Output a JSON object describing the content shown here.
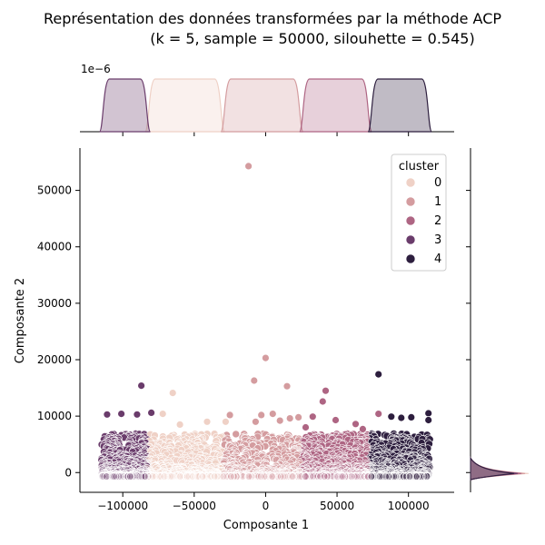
{
  "chart_data": {
    "type": "scatter",
    "title_line1": "Représentation des données transformées par la méthode ACP",
    "title_line2": "(k = 5, sample = 50000, silouhette = 0.545)",
    "xlabel": "Composante 1",
    "ylabel": "Composante 2",
    "xlim": [
      -130000,
      132000
    ],
    "ylim": [
      -3500,
      57500
    ],
    "x_ticks": [
      -100000,
      -50000,
      0,
      50000,
      100000
    ],
    "x_tick_labels": [
      "−100000",
      "−50000",
      "0",
      "50000",
      "100000"
    ],
    "y_ticks": [
      0,
      10000,
      20000,
      30000,
      40000,
      50000
    ],
    "y_tick_labels": [
      "0",
      "10000",
      "20000",
      "30000",
      "40000",
      "50000"
    ],
    "top_marginal_scale_label": "1e−6",
    "legend": {
      "title": "cluster",
      "placement": "top-right",
      "entries": [
        {
          "label": "0",
          "color": "#efd1c6"
        },
        {
          "label": "1",
          "color": "#d49c9f"
        },
        {
          "label": "2",
          "color": "#ae6583"
        },
        {
          "label": "3",
          "color": "#6a3c6b"
        },
        {
          "label": "4",
          "color": "#2d1e3e"
        }
      ]
    },
    "clusters": [
      {
        "name": "0",
        "color": "#efd1c6",
        "x_range": [
          -83000,
          -30000
        ]
      },
      {
        "name": "1",
        "color": "#d49c9f",
        "x_range": [
          -30000,
          25000
        ]
      },
      {
        "name": "2",
        "color": "#ae6583",
        "x_range": [
          25000,
          73000
        ]
      },
      {
        "name": "3",
        "color": "#6a3c6b",
        "x_range": [
          -115000,
          -82000
        ]
      },
      {
        "name": "4",
        "color": "#2d1e3e",
        "x_range": [
          73000,
          115000
        ]
      }
    ],
    "outliers": [
      {
        "x": -12000,
        "y": 54300,
        "cluster": "1"
      },
      {
        "x": 0,
        "y": 20300,
        "cluster": "1"
      },
      {
        "x": -8000,
        "y": 16300,
        "cluster": "1"
      },
      {
        "x": 15000,
        "y": 15300,
        "cluster": "1"
      },
      {
        "x": 42000,
        "y": 14500,
        "cluster": "2"
      },
      {
        "x": 40000,
        "y": 12600,
        "cluster": "2"
      },
      {
        "x": 79000,
        "y": 17400,
        "cluster": "4"
      },
      {
        "x": -87000,
        "y": 15400,
        "cluster": "3"
      },
      {
        "x": -65000,
        "y": 14100,
        "cluster": "0"
      },
      {
        "x": -111000,
        "y": 10300,
        "cluster": "3"
      },
      {
        "x": -101000,
        "y": 10400,
        "cluster": "3"
      },
      {
        "x": -90000,
        "y": 10300,
        "cluster": "3"
      },
      {
        "x": -80000,
        "y": 10600,
        "cluster": "3"
      },
      {
        "x": -72000,
        "y": 10400,
        "cluster": "0"
      },
      {
        "x": -3000,
        "y": 10200,
        "cluster": "1"
      },
      {
        "x": 5000,
        "y": 10400,
        "cluster": "1"
      },
      {
        "x": 10000,
        "y": 9200,
        "cluster": "1"
      },
      {
        "x": 17000,
        "y": 9600,
        "cluster": "1"
      },
      {
        "x": 23000,
        "y": 9800,
        "cluster": "1"
      },
      {
        "x": 33000,
        "y": 9900,
        "cluster": "2"
      },
      {
        "x": 49000,
        "y": 9300,
        "cluster": "2"
      },
      {
        "x": 79000,
        "y": 10400,
        "cluster": "2"
      },
      {
        "x": 88000,
        "y": 9900,
        "cluster": "4"
      },
      {
        "x": 95000,
        "y": 9700,
        "cluster": "4"
      },
      {
        "x": 102000,
        "y": 9800,
        "cluster": "4"
      },
      {
        "x": 114000,
        "y": 10500,
        "cluster": "4"
      },
      {
        "x": 114000,
        "y": 9300,
        "cluster": "4"
      },
      {
        "x": -25000,
        "y": 10200,
        "cluster": "1"
      },
      {
        "x": -28000,
        "y": 9000,
        "cluster": "0"
      },
      {
        "x": -41000,
        "y": 9000,
        "cluster": "0"
      },
      {
        "x": -60000,
        "y": 8500,
        "cluster": "0"
      },
      {
        "x": -7000,
        "y": 9000,
        "cluster": "1"
      },
      {
        "x": 28000,
        "y": 8000,
        "cluster": "2"
      },
      {
        "x": 63000,
        "y": 8600,
        "cluster": "2"
      },
      {
        "x": 68000,
        "y": 7700,
        "cluster": "2"
      }
    ]
  }
}
